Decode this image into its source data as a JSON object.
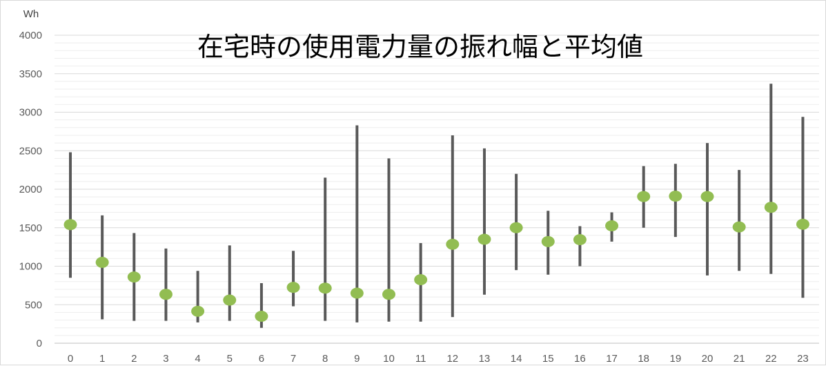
{
  "chart_data": {
    "type": "scatter",
    "title": "在宅時の使用電力量の振れ幅と平均値",
    "ylabel": "Wh",
    "xlabel": "",
    "ylim": [
      0,
      4000
    ],
    "y_ticks": [
      0,
      500,
      1000,
      1500,
      2000,
      2500,
      3000,
      3500,
      4000
    ],
    "categories": [
      "0",
      "1",
      "2",
      "3",
      "4",
      "5",
      "6",
      "7",
      "8",
      "9",
      "10",
      "11",
      "12",
      "13",
      "14",
      "15",
      "16",
      "17",
      "18",
      "19",
      "20",
      "21",
      "22",
      "23"
    ],
    "series": [
      {
        "values": [
          1540,
          1050,
          860,
          635,
          415,
          560,
          350,
          725,
          715,
          650,
          635,
          825,
          1285,
          1350,
          1500,
          1320,
          1345,
          1525,
          1905,
          1910,
          1905,
          1510,
          1765,
          1545
        ],
        "low": [
          850,
          310,
          290,
          290,
          270,
          290,
          200,
          480,
          290,
          270,
          280,
          280,
          340,
          630,
          950,
          890,
          1000,
          1320,
          1500,
          1380,
          880,
          940,
          900,
          590
        ],
        "high": [
          2480,
          1660,
          1430,
          1230,
          940,
          1270,
          780,
          1200,
          2150,
          2830,
          2400,
          1300,
          2700,
          2530,
          2200,
          1720,
          1520,
          1700,
          2300,
          2330,
          2600,
          2250,
          3370,
          2940
        ]
      }
    ],
    "grid": true,
    "minor_grid": true,
    "colors": {
      "marker": "#92bd52",
      "range_bar": "#595959",
      "grid": "#d9d9d9",
      "minor_grid": "#eeeeee",
      "axis_text": "#595959"
    }
  }
}
